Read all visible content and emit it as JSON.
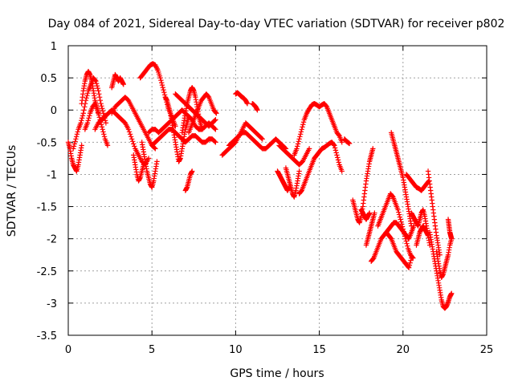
{
  "chart_data": {
    "type": "scatter",
    "title": "Day 084 of 2021, Sidereal Day-to-day VTEC variation (SDTVAR) for receiver p802",
    "xlabel": "GPS time / hours",
    "ylabel": "SDTVAR / TECUs",
    "xlim": [
      0,
      25
    ],
    "ylim": [
      -3.5,
      1
    ],
    "xticks": [
      0,
      5,
      10,
      15,
      20,
      25
    ],
    "xtick_labels": [
      "0",
      "5",
      "10",
      "15",
      "20",
      "25"
    ],
    "yticks": [
      -3.5,
      -3,
      -2.5,
      -2,
      -1.5,
      -1,
      -0.5,
      0,
      0.5,
      1
    ],
    "ytick_labels": [
      "-3.5",
      "-3",
      "-2.5",
      "-2",
      "-1.5",
      "-1",
      "-0.5",
      "0",
      "0.5",
      "1"
    ],
    "grid": true,
    "marker": "+",
    "color": "#ff0000",
    "series": [
      {
        "name": "s1",
        "x": [
          0.0,
          0.1,
          0.2,
          0.3,
          0.4,
          0.5,
          0.6,
          0.7,
          0.8
        ],
        "y": [
          -0.5,
          -0.6,
          -0.75,
          -0.85,
          -0.9,
          -0.95,
          -0.85,
          -0.7,
          -0.55
        ]
      },
      {
        "name": "s2",
        "x": [
          0.3,
          0.45,
          0.6,
          0.75,
          0.9,
          1.05,
          1.2,
          1.35,
          1.5,
          1.65,
          1.8,
          1.95,
          2.1,
          2.25
        ],
        "y": [
          -0.6,
          -0.45,
          -0.3,
          -0.2,
          -0.05,
          0.15,
          0.3,
          0.4,
          0.5,
          0.45,
          0.3,
          0.1,
          -0.05,
          -0.2
        ]
      },
      {
        "name": "s3",
        "x": [
          0.8,
          0.9,
          1.0,
          1.1,
          1.2,
          1.3,
          1.4,
          1.5,
          1.6,
          1.7,
          1.8
        ],
        "y": [
          0.1,
          0.3,
          0.45,
          0.55,
          0.6,
          0.55,
          0.45,
          0.3,
          0.15,
          0.05,
          -0.05
        ]
      },
      {
        "name": "s4",
        "x": [
          1.0,
          1.15,
          1.3,
          1.45,
          1.6,
          1.75,
          1.9,
          2.05,
          2.2,
          2.35
        ],
        "y": [
          -0.3,
          -0.2,
          -0.05,
          0.05,
          0.1,
          0.0,
          -0.15,
          -0.3,
          -0.45,
          -0.55
        ]
      },
      {
        "name": "s5",
        "x": [
          1.6,
          1.8,
          2.0,
          2.2,
          2.4,
          2.6,
          2.8,
          3.0,
          3.2,
          3.4,
          3.6,
          3.8,
          4.0,
          4.2,
          4.4,
          4.6,
          4.8
        ],
        "y": [
          -0.3,
          -0.2,
          -0.15,
          -0.1,
          -0.05,
          0.0,
          -0.05,
          -0.1,
          -0.15,
          -0.2,
          -0.3,
          -0.45,
          -0.6,
          -0.7,
          -0.8,
          -0.85,
          -0.75
        ]
      },
      {
        "name": "s6",
        "x": [
          2.6,
          2.7,
          2.8,
          2.9,
          3.0,
          3.1,
          3.2,
          3.3
        ],
        "y": [
          0.35,
          0.45,
          0.55,
          0.5,
          0.45,
          0.5,
          0.45,
          0.4
        ]
      },
      {
        "name": "s7",
        "x": [
          2.6,
          2.8,
          3.0,
          3.2,
          3.4,
          3.6,
          3.8,
          4.0,
          4.2,
          4.4,
          4.6,
          4.8,
          5.0,
          5.2
        ],
        "y": [
          -0.05,
          0.05,
          0.1,
          0.15,
          0.2,
          0.15,
          0.05,
          -0.05,
          -0.15,
          -0.25,
          -0.35,
          -0.45,
          -0.55,
          -0.6
        ]
      },
      {
        "name": "s8",
        "x": [
          3.9,
          4.0,
          4.1,
          4.2,
          4.3,
          4.4,
          4.5
        ],
        "y": [
          -0.7,
          -0.85,
          -1.0,
          -1.1,
          -1.05,
          -0.95,
          -0.85
        ]
      },
      {
        "name": "s9",
        "x": [
          4.4,
          4.5,
          4.6,
          4.7,
          4.8,
          4.9,
          5.0,
          5.1,
          5.2,
          5.3
        ],
        "y": [
          -0.5,
          -0.65,
          -0.8,
          -0.95,
          -1.05,
          -1.15,
          -1.2,
          -1.1,
          -0.95,
          -0.8
        ]
      },
      {
        "name": "s10",
        "x": [
          4.3,
          4.45,
          4.6,
          4.75,
          4.9,
          5.05,
          5.2,
          5.35,
          5.5,
          5.65,
          5.8,
          5.95,
          6.1,
          6.25,
          6.4
        ],
        "y": [
          0.5,
          0.55,
          0.6,
          0.65,
          0.7,
          0.72,
          0.7,
          0.62,
          0.5,
          0.35,
          0.2,
          0.05,
          -0.05,
          -0.15,
          -0.25
        ]
      },
      {
        "name": "s11",
        "x": [
          4.8,
          5.0,
          5.2,
          5.4,
          5.6,
          5.8,
          6.0,
          6.2,
          6.4,
          6.6,
          6.8,
          7.0,
          7.2,
          7.4,
          7.6,
          7.8,
          8.0,
          8.2,
          8.4,
          8.6,
          8.8
        ],
        "y": [
          -0.35,
          -0.3,
          -0.3,
          -0.35,
          -0.3,
          -0.25,
          -0.2,
          -0.15,
          -0.1,
          -0.05,
          0.0,
          -0.05,
          -0.1,
          -0.15,
          -0.25,
          -0.3,
          -0.3,
          -0.25,
          -0.2,
          -0.25,
          -0.3
        ]
      },
      {
        "name": "s12",
        "x": [
          5.0,
          5.2,
          5.4,
          5.6,
          5.8,
          6.0,
          6.2,
          6.4,
          6.6,
          6.8,
          7.0,
          7.2,
          7.4,
          7.6,
          7.8,
          8.0,
          8.2,
          8.4,
          8.6,
          8.8
        ],
        "y": [
          -0.55,
          -0.5,
          -0.45,
          -0.4,
          -0.35,
          -0.3,
          -0.3,
          -0.35,
          -0.4,
          -0.45,
          -0.5,
          -0.45,
          -0.4,
          -0.4,
          -0.45,
          -0.5,
          -0.5,
          -0.45,
          -0.45,
          -0.5
        ]
      },
      {
        "name": "s13",
        "x": [
          5.8,
          5.9,
          6.0,
          6.1,
          6.2,
          6.3,
          6.4,
          6.5,
          6.6,
          6.7,
          6.8,
          6.9,
          7.0,
          7.1,
          7.2
        ],
        "y": [
          0.2,
          0.15,
          0.05,
          -0.05,
          -0.2,
          -0.35,
          -0.5,
          -0.65,
          -0.8,
          -0.75,
          -0.6,
          -0.45,
          -0.3,
          -0.2,
          -0.1
        ]
      },
      {
        "name": "s14",
        "x": [
          6.4,
          6.6,
          6.8,
          7.0,
          7.2,
          7.4,
          7.6,
          7.8,
          8.0,
          8.2,
          8.4,
          8.6,
          8.8
        ],
        "y": [
          0.25,
          0.2,
          0.15,
          0.1,
          0.05,
          0.0,
          -0.05,
          -0.1,
          -0.15,
          -0.2,
          -0.25,
          -0.2,
          -0.15
        ]
      },
      {
        "name": "s15",
        "x": [
          6.8,
          6.9,
          7.0,
          7.1,
          7.2,
          7.3,
          7.4,
          7.5,
          7.6,
          7.7,
          7.8,
          7.9,
          8.0
        ],
        "y": [
          -0.35,
          -0.2,
          -0.05,
          0.1,
          0.2,
          0.3,
          0.35,
          0.3,
          0.2,
          0.05,
          -0.1,
          -0.2,
          -0.3
        ]
      },
      {
        "name": "s16",
        "x": [
          7.2,
          7.35,
          7.5,
          7.65,
          7.8,
          7.95,
          8.1,
          8.25,
          8.4,
          8.55,
          8.7,
          8.85
        ],
        "y": [
          -0.35,
          -0.25,
          -0.15,
          -0.05,
          0.05,
          0.15,
          0.2,
          0.25,
          0.2,
          0.1,
          0.0,
          -0.05
        ]
      },
      {
        "name": "s17",
        "x": [
          7.0,
          7.1,
          7.2,
          7.3,
          7.4
        ],
        "y": [
          -1.25,
          -1.2,
          -1.1,
          -1.0,
          -0.95
        ]
      },
      {
        "name": "s18",
        "x": [
          9.2,
          9.4,
          9.6,
          9.8,
          10.0,
          10.2,
          10.4,
          10.6,
          10.8,
          11.0,
          11.2,
          11.4,
          11.6
        ],
        "y": [
          -0.7,
          -0.65,
          -0.6,
          -0.55,
          -0.5,
          -0.4,
          -0.3,
          -0.2,
          -0.25,
          -0.3,
          -0.35,
          -0.4,
          -0.45
        ]
      },
      {
        "name": "s19",
        "x": [
          9.6,
          9.8,
          10.0,
          10.2,
          10.4,
          10.6,
          10.8,
          11.0,
          11.2,
          11.4,
          11.6,
          11.8,
          12.0,
          12.2,
          12.4,
          12.6,
          12.8,
          13.0
        ],
        "y": [
          -0.55,
          -0.5,
          -0.45,
          -0.4,
          -0.35,
          -0.35,
          -0.4,
          -0.45,
          -0.5,
          -0.55,
          -0.6,
          -0.6,
          -0.55,
          -0.5,
          -0.45,
          -0.5,
          -0.55,
          -0.6
        ]
      },
      {
        "name": "s20",
        "x": [
          10.0,
          10.1,
          10.2,
          10.3,
          10.4,
          10.5,
          10.6,
          10.7
        ],
        "y": [
          0.25,
          0.27,
          0.25,
          0.22,
          0.2,
          0.18,
          0.15,
          0.1
        ]
      },
      {
        "name": "s21",
        "x": [
          11.0,
          11.1,
          11.2,
          11.3
        ],
        "y": [
          0.1,
          0.08,
          0.05,
          0.0
        ]
      },
      {
        "name": "s22",
        "x": [
          12.5,
          12.6,
          12.7,
          12.8,
          12.9,
          13.0,
          13.1,
          13.2
        ],
        "y": [
          -0.95,
          -1.0,
          -1.05,
          -1.1,
          -1.15,
          -1.2,
          -1.25,
          -1.2
        ]
      },
      {
        "name": "s23",
        "x": [
          12.6,
          12.8,
          13.0,
          13.2,
          13.4,
          13.6,
          13.8,
          14.0,
          14.2,
          14.4
        ],
        "y": [
          -0.55,
          -0.6,
          -0.65,
          -0.7,
          -0.75,
          -0.8,
          -0.85,
          -0.8,
          -0.7,
          -0.6
        ]
      },
      {
        "name": "s24",
        "x": [
          13.0,
          13.1,
          13.2,
          13.3,
          13.4,
          13.5,
          13.6,
          13.7,
          13.8
        ],
        "y": [
          -0.9,
          -1.0,
          -1.1,
          -1.2,
          -1.3,
          -1.35,
          -1.25,
          -1.1,
          -0.95
        ]
      },
      {
        "name": "s25",
        "x": [
          13.5,
          13.65,
          13.8,
          13.95,
          14.1,
          14.25,
          14.4,
          14.55,
          14.7,
          14.85,
          15.0,
          15.15,
          15.3,
          15.45,
          15.6,
          15.75,
          15.9,
          16.05,
          16.2,
          16.35
        ],
        "y": [
          -0.7,
          -0.6,
          -0.45,
          -0.3,
          -0.15,
          -0.05,
          0.02,
          0.08,
          0.1,
          0.08,
          0.05,
          0.08,
          0.1,
          0.05,
          -0.05,
          -0.15,
          -0.25,
          -0.35,
          -0.4,
          -0.5
        ]
      },
      {
        "name": "s26",
        "x": [
          13.8,
          13.95,
          14.1,
          14.25,
          14.4,
          14.55,
          14.7,
          14.85,
          15.0,
          15.15,
          15.3,
          15.45,
          15.6,
          15.75,
          15.9,
          16.05,
          16.2,
          16.35
        ],
        "y": [
          -1.3,
          -1.25,
          -1.15,
          -1.05,
          -0.95,
          -0.85,
          -0.75,
          -0.7,
          -0.65,
          -0.6,
          -0.58,
          -0.55,
          -0.52,
          -0.5,
          -0.55,
          -0.7,
          -0.85,
          -0.95
        ]
      },
      {
        "name": "s27",
        "x": [
          16.5,
          16.6,
          16.7,
          16.8
        ],
        "y": [
          -0.45,
          -0.48,
          -0.5,
          -0.52
        ]
      },
      {
        "name": "s28",
        "x": [
          17.0,
          17.1,
          17.2,
          17.3,
          17.4,
          17.5,
          17.6,
          17.7,
          17.8,
          17.9,
          18.0,
          18.1,
          18.2
        ],
        "y": [
          -1.4,
          -1.5,
          -1.6,
          -1.7,
          -1.75,
          -1.65,
          -1.5,
          -1.3,
          -1.1,
          -0.95,
          -0.8,
          -0.7,
          -0.6
        ]
      },
      {
        "name": "s29",
        "x": [
          17.5,
          17.6,
          17.7,
          17.8,
          17.9,
          18.0
        ],
        "y": [
          -1.55,
          -1.6,
          -1.65,
          -1.7,
          -1.65,
          -1.6
        ]
      },
      {
        "name": "s30",
        "x": [
          17.8,
          17.9,
          18.0,
          18.1,
          18.2,
          18.3
        ],
        "y": [
          -2.1,
          -2.0,
          -1.9,
          -1.8,
          -1.7,
          -1.6
        ]
      },
      {
        "name": "s31",
        "x": [
          18.1,
          18.25,
          18.4,
          18.55,
          18.7,
          18.85,
          19.0,
          19.15,
          19.3,
          19.45,
          19.6,
          19.75,
          19.9,
          20.05,
          20.2,
          20.35,
          20.5,
          20.65
        ],
        "y": [
          -2.35,
          -2.3,
          -2.2,
          -2.1,
          -2.0,
          -1.95,
          -1.9,
          -1.85,
          -1.8,
          -1.75,
          -1.75,
          -1.8,
          -1.85,
          -1.9,
          -1.95,
          -2.0,
          -1.9,
          -1.8
        ]
      },
      {
        "name": "s32",
        "x": [
          18.5,
          18.65,
          18.8,
          18.95,
          19.1,
          19.25,
          19.4,
          19.55,
          19.7,
          19.85,
          20.0,
          20.15,
          20.3,
          20.45,
          20.6
        ],
        "y": [
          -1.8,
          -1.7,
          -1.6,
          -1.5,
          -1.4,
          -1.3,
          -1.35,
          -1.45,
          -1.55,
          -1.7,
          -1.85,
          -2.0,
          -2.15,
          -2.25,
          -2.3
        ]
      },
      {
        "name": "s33",
        "x": [
          19.0,
          19.15,
          19.3,
          19.45,
          19.6,
          19.75,
          19.9,
          20.05,
          20.2,
          20.35,
          20.5
        ],
        "y": [
          -1.9,
          -1.95,
          -2.0,
          -2.1,
          -2.2,
          -2.25,
          -2.3,
          -2.35,
          -2.4,
          -2.45,
          -2.3
        ]
      },
      {
        "name": "s34",
        "x": [
          19.3,
          19.4,
          19.5,
          19.6,
          19.7,
          19.8,
          19.9,
          20.0,
          20.1,
          20.2,
          20.3,
          20.4,
          20.5
        ],
        "y": [
          -0.35,
          -0.45,
          -0.55,
          -0.65,
          -0.75,
          -0.85,
          -0.95,
          -1.05,
          -1.2,
          -1.35,
          -1.5,
          -1.65,
          -1.8
        ]
      },
      {
        "name": "s35",
        "x": [
          20.2,
          20.35,
          20.5,
          20.65,
          20.8,
          20.95,
          21.1,
          21.25,
          21.4,
          21.55
        ],
        "y": [
          -1.0,
          -1.05,
          -1.1,
          -1.15,
          -1.2,
          -1.22,
          -1.25,
          -1.2,
          -1.15,
          -1.1
        ]
      },
      {
        "name": "s36",
        "x": [
          20.5,
          20.6,
          20.7,
          20.8,
          20.9,
          21.0,
          21.1,
          21.2,
          21.3,
          21.4,
          21.5,
          21.6
        ],
        "y": [
          -1.6,
          -1.65,
          -1.7,
          -1.75,
          -1.8,
          -1.7,
          -1.6,
          -1.55,
          -1.65,
          -1.8,
          -1.95,
          -2.1
        ]
      },
      {
        "name": "s37",
        "x": [
          20.8,
          20.9,
          21.0,
          21.1,
          21.2,
          21.3,
          21.4,
          21.5
        ],
        "y": [
          -2.1,
          -2.0,
          -1.9,
          -1.85,
          -1.8,
          -1.85,
          -1.9,
          -1.95
        ]
      },
      {
        "name": "s38",
        "x": [
          21.5,
          21.6,
          21.7,
          21.8,
          21.9,
          22.0,
          22.1,
          22.2
        ],
        "y": [
          -0.95,
          -1.15,
          -1.35,
          -1.55,
          -1.75,
          -1.95,
          -2.1,
          -2.25
        ]
      },
      {
        "name": "s39",
        "x": [
          21.6,
          21.7,
          21.8,
          21.9,
          22.0,
          22.1,
          22.2,
          22.3,
          22.4,
          22.5,
          22.6,
          22.7,
          22.8,
          22.9
        ],
        "y": [
          -1.9,
          -2.05,
          -2.2,
          -2.35,
          -2.5,
          -2.65,
          -2.8,
          -2.95,
          -3.05,
          -3.08,
          -3.05,
          -2.98,
          -2.9,
          -2.85
        ]
      },
      {
        "name": "s40",
        "x": [
          22.0,
          22.1,
          22.2,
          22.3,
          22.4,
          22.5,
          22.6,
          22.7,
          22.8,
          22.9
        ],
        "y": [
          -2.2,
          -2.35,
          -2.5,
          -2.6,
          -2.55,
          -2.45,
          -2.35,
          -2.25,
          -2.1,
          -2.0
        ]
      },
      {
        "name": "s41",
        "x": [
          22.7,
          22.75,
          22.8,
          22.85,
          22.9
        ],
        "y": [
          -1.7,
          -1.8,
          -1.9,
          -1.95,
          -2.0
        ]
      }
    ]
  }
}
